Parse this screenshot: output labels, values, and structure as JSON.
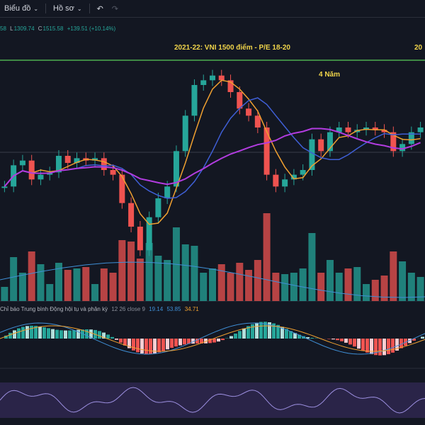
{
  "toolbar": {
    "chart_label": "Biểu đồ",
    "profile_label": "Hồ sơ"
  },
  "ohlc": {
    "open_frag": "58",
    "low_label": "L",
    "low_value": "1309.74",
    "close_label": "C",
    "close_value": "1515.58",
    "change": "+139.51 (+10.14%)"
  },
  "annotations": {
    "period_label": "2021-22: VNI 1500 điểm - P/E 18-20",
    "duration_label": "4 Năm",
    "right_cut_label": "20"
  },
  "macd_pane": {
    "title": "Chỉ báo Trung bình Động hội tụ và phân kỳ",
    "params": "12 26 close 9",
    "v1": "19.14",
    "v2": "53.85",
    "v3": "34.71"
  },
  "colors": {
    "background": "#131722",
    "up": "#26a69a",
    "down": "#ef5350",
    "ma_fast": "#f0a030",
    "ma_mid": "#3f5fd6",
    "ma_slow": "#b23ce0",
    "level_line": "#4caf50",
    "annotation": "#f0d44a"
  },
  "chart_data": {
    "type": "line",
    "description_series": [
      {
        "values": [
          1050,
          1140,
          1160,
          1080,
          1100,
          1110,
          1180,
          1150,
          1170,
          1160,
          1170,
          1120,
          1100,
          980,
          880,
          780,
          920,
          1000,
          1050,
          1200,
          1350,
          1480,
          1500,
          1520,
          1500,
          1450,
          1380,
          1350,
          1300,
          1100,
          1050,
          1080,
          1100,
          1120,
          1250,
          1200,
          1280,
          1300,
          1280,
          1290,
          1300,
          1290,
          1280,
          1200,
          1230,
          1280,
          1300
        ]
      }
    ]
  }
}
